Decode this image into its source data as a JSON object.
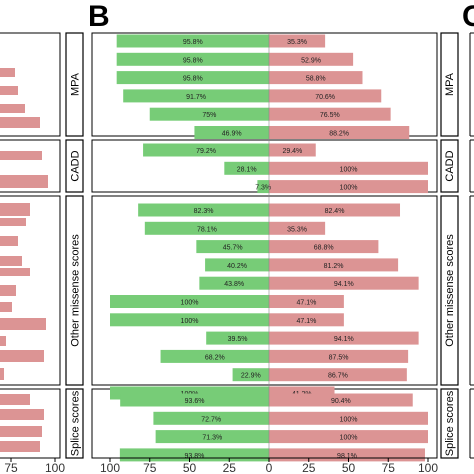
{
  "panel_labels": [
    "B",
    "C"
  ],
  "chart_data": [
    {
      "panel": "A (partially visible, left edge)",
      "type": "bar",
      "orientation": "horizontal",
      "x_ticks": [
        "75",
        "100"
      ],
      "groups": [
        "MPA",
        "CADD",
        "Other missense scores",
        "Splice scores"
      ]
    },
    {
      "panel": "B",
      "type": "bar",
      "orientation": "horizontal-diverging",
      "x_ticks": [
        "100",
        "75",
        "50",
        "25",
        "0",
        "25",
        "50",
        "75",
        "100"
      ],
      "xlim": [
        -100,
        100
      ],
      "grid": false,
      "colors": {
        "left": "#77cc77",
        "right": "#dc9494"
      },
      "groups": [
        {
          "label": "MPA",
          "rows": [
            {
              "left": 95.8,
              "left_label": "95.8%",
              "right": 35.3,
              "right_label": "35.3%"
            },
            {
              "left": 95.8,
              "left_label": "95.8%",
              "right": 52.9,
              "right_label": "52.9%"
            },
            {
              "left": 95.8,
              "left_label": "95.8%",
              "right": 58.8,
              "right_label": "58.8%"
            },
            {
              "left": 91.7,
              "left_label": "91.7%",
              "right": 70.6,
              "right_label": "70.6%"
            },
            {
              "left": 75,
              "left_label": "75%",
              "right": 76.5,
              "right_label": "76.5%"
            },
            {
              "left": 46.9,
              "left_label": "46.9%",
              "right": 88.2,
              "right_label": "88.2%"
            }
          ]
        },
        {
          "label": "CADD",
          "rows": [
            {
              "left": 79.2,
              "left_label": "79.2%",
              "right": 29.4,
              "right_label": "29.4%"
            },
            {
              "left": 28.1,
              "left_label": "28.1%",
              "right": 100,
              "right_label": "100%"
            },
            {
              "left": 7.3,
              "left_label": "7.3%",
              "right": 100,
              "right_label": "100%"
            }
          ]
        },
        {
          "label": "Other missense scores",
          "rows": [
            {
              "left": 82.3,
              "left_label": "82.3%",
              "right": 82.4,
              "right_label": "82.4%"
            },
            {
              "left": 78.1,
              "left_label": "78.1%",
              "right": 35.3,
              "right_label": "35.3%"
            },
            {
              "left": 45.7,
              "left_label": "45.7%",
              "right": 68.8,
              "right_label": "68.8%"
            },
            {
              "left": 40.2,
              "left_label": "40.2%",
              "right": 81.2,
              "right_label": "81.2%"
            },
            {
              "left": 43.8,
              "left_label": "43.8%",
              "right": 94.1,
              "right_label": "94.1%"
            },
            {
              "left": 100,
              "left_label": "100%",
              "right": 47.1,
              "right_label": "47.1%"
            },
            {
              "left": 100,
              "left_label": "100%",
              "right": 47.1,
              "right_label": "47.1%"
            },
            {
              "left": 39.5,
              "left_label": "39.5%",
              "right": 94.1,
              "right_label": "94.1%"
            },
            {
              "left": 68.2,
              "left_label": "68.2%",
              "right": 87.5,
              "right_label": "87.5%"
            },
            {
              "left": 22.9,
              "left_label": "22.9%",
              "right": 86.7,
              "right_label": "86.7%"
            },
            {
              "left": 100,
              "left_label": "100%",
              "right": 41.2,
              "right_label": "41.2%"
            }
          ]
        },
        {
          "label": "Splice scores",
          "rows": [
            {
              "left": 93.6,
              "left_label": "93.6%",
              "right": 90.4,
              "right_label": "90.4%"
            },
            {
              "left": 72.7,
              "left_label": "72.7%",
              "right": 100,
              "right_label": "100%"
            },
            {
              "left": 71.3,
              "left_label": "71.3%",
              "right": 100,
              "right_label": "100%"
            },
            {
              "left": 93.8,
              "left_label": "93.8%",
              "right": 98.1,
              "right_label": "98.1%"
            }
          ]
        }
      ]
    }
  ]
}
